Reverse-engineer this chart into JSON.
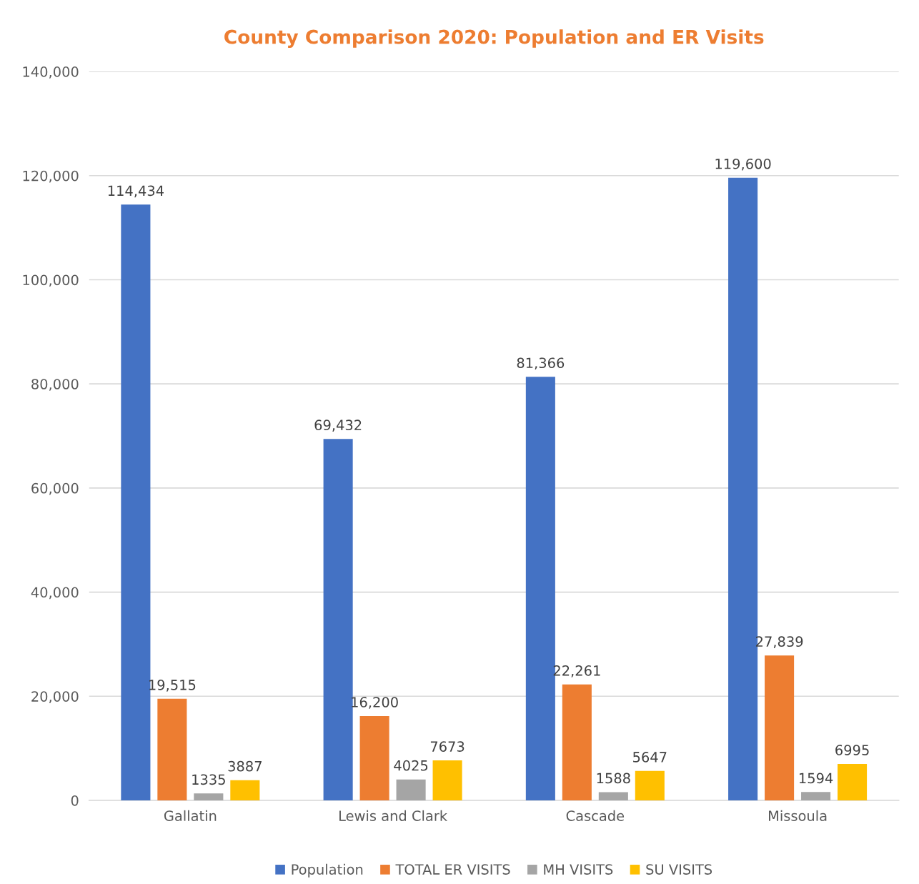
{
  "chart_data": {
    "type": "bar",
    "title": "County Comparison 2020: Population and ER Visits",
    "categories": [
      "Gallatin",
      "Lewis and Clark",
      "Cascade",
      "Missoula"
    ],
    "series": [
      {
        "name": "Population",
        "color": "#4472c4",
        "values": [
          114434,
          69432,
          81366,
          119600
        ],
        "value_labels": [
          "114,434",
          "69,432",
          "81,366",
          "119,600"
        ]
      },
      {
        "name": "TOTAL ER VISITS",
        "color": "#ed7d31",
        "values": [
          19515,
          16200,
          22261,
          27839
        ],
        "value_labels": [
          "19,515",
          "16,200",
          "22,261",
          "27,839"
        ]
      },
      {
        "name": "MH VISITS",
        "color": "#a5a5a5",
        "values": [
          1335,
          4025,
          1588,
          1594
        ],
        "value_labels": [
          "1335",
          "4025",
          "1588",
          "1594"
        ]
      },
      {
        "name": "SU VISITS",
        "color": "#ffc000",
        "values": [
          3887,
          7673,
          5647,
          6995
        ],
        "value_labels": [
          "3887",
          "7673",
          "5647",
          "6995"
        ]
      }
    ],
    "ylim": [
      0,
      140000
    ],
    "yticks": [
      {
        "value": 0,
        "label": "0"
      },
      {
        "value": 20000,
        "label": "20,000"
      },
      {
        "value": 40000,
        "label": "40,000"
      },
      {
        "value": 60000,
        "label": "60,000"
      },
      {
        "value": 80000,
        "label": "80,000"
      },
      {
        "value": 100000,
        "label": "100,000"
      },
      {
        "value": 120000,
        "label": "120,000"
      },
      {
        "value": 140000,
        "label": "140,000"
      }
    ],
    "grid": "y",
    "legend": "bottom"
  }
}
